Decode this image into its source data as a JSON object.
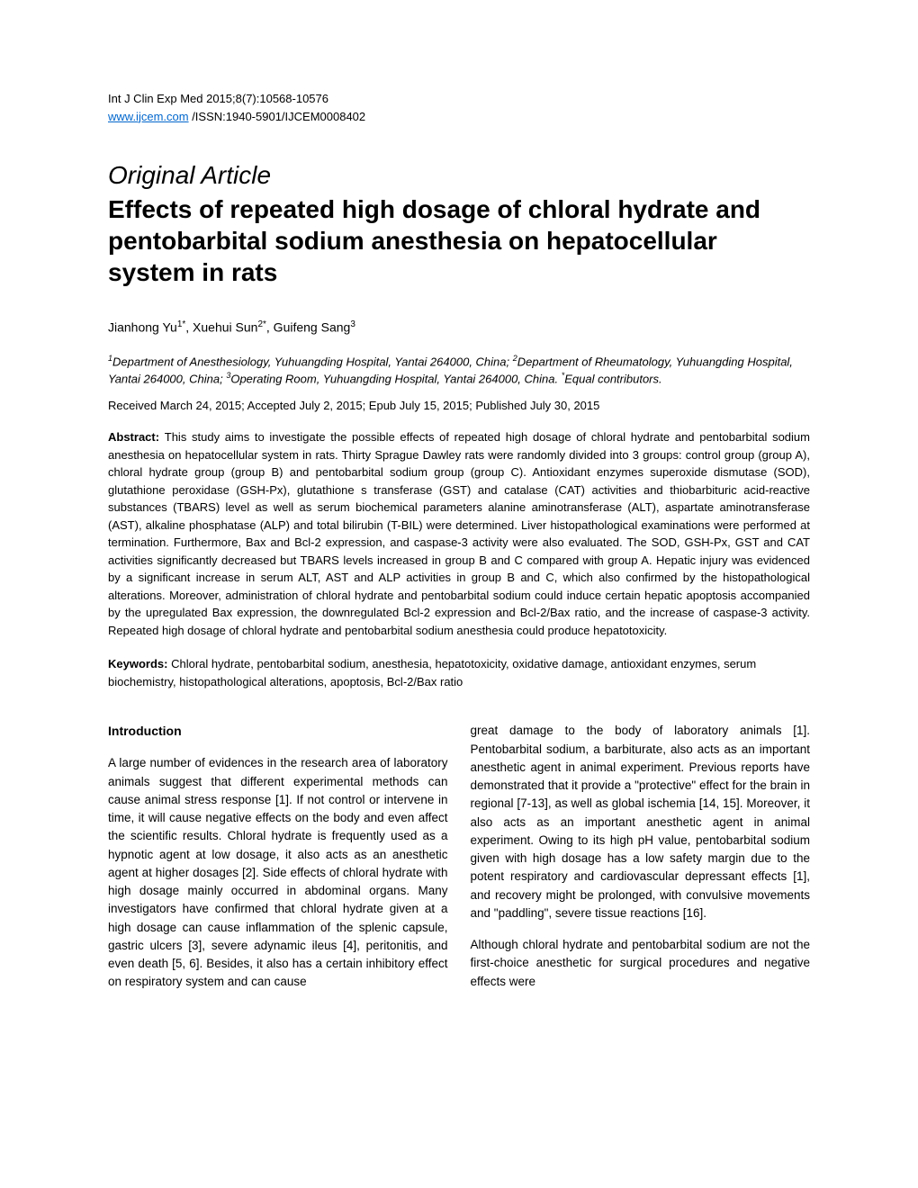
{
  "header": {
    "journal_line": "Int J Clin Exp Med 2015;8(7):10568-10576",
    "link_text": "www.ijcem.com",
    "issn_text": " /ISSN:1940-5901/IJCEM0008402"
  },
  "article_type": "Original Article",
  "title": "Effects of repeated high dosage of chloral hydrate and pentobarbital sodium anesthesia on hepatocellular system in rats",
  "authors_html": "Jianhong Yu<sup>1*</sup>, Xuehui Sun<sup>2*</sup>, Guifeng Sang<sup>3</sup>",
  "affiliations_html": "<sup>1</sup>Department of Anesthesiology, Yuhuangding Hospital, Yantai 264000, China; <sup>2</sup>Department of Rheumatology, Yuhuangding Hospital, Yantai 264000, China; <sup>3</sup>Operating Room, Yuhuangding Hospital, Yantai 264000, China. <sup>*</sup>Equal contributors.",
  "dates": "Received March 24, 2015; Accepted July 2, 2015; Epub July 15, 2015; Published July 30, 2015",
  "abstract_label": "Abstract: ",
  "abstract_text": "This study aims to investigate the possible effects of repeated high dosage of chloral hydrate and pentobarbital sodium anesthesia on hepatocellular system in rats. Thirty Sprague Dawley rats were randomly divided into 3 groups: control group (group A), chloral hydrate group (group B) and pentobarbital sodium group (group C). Antioxidant enzymes superoxide dismutase (SOD), glutathione peroxidase (GSH-Px), glutathione s transferase (GST) and catalase (CAT) activities and thiobarbituric acid-reactive substances (TBARS) level as well as serum biochemical parameters alanine aminotransferase (ALT), aspartate aminotransferase (AST), alkaline phosphatase (ALP) and total bilirubin (T-BIL) were determined. Liver histopathological examinations were performed at termination. Furthermore, Bax and Bcl-2 expression, and caspase-3 activity were also evaluated. The SOD, GSH-Px, GST and CAT activities significantly decreased but TBARS levels increased in group B and C compared with group A. Hepatic injury was evidenced by a significant increase in serum ALT, AST and ALP activities in group B and C, which also confirmed by the histopathological alterations. Moreover, administration of chloral hydrate and pentobarbital sodium could induce certain hepatic apoptosis accompanied by the upregulated Bax expression, the downregulated Bcl-2 expression and Bcl-2/Bax ratio, and the increase of caspase-3 activity. Repeated high dosage of chloral hydrate and pentobarbital sodium anesthesia could produce hepatotoxicity.",
  "keywords_label": "Keywords: ",
  "keywords_text": "Chloral hydrate, pentobarbital sodium, anesthesia, hepatotoxicity, oxidative damage, antioxidant enzymes, serum biochemistry, histopathological alterations, apoptosis, Bcl-2/Bax ratio",
  "intro_heading": "Introduction",
  "col1_para1": "A large number of evidences in the research area of laboratory animals suggest that different experimental methods can cause animal stress response [1]. If not control or intervene in time, it will cause negative effects on the body and even affect the scientific results. Chloral hydrate is frequently used as a hypnotic agent at low dosage, it also acts as an anesthetic agent at higher dosages [2]. Side effects of chloral hydrate with high dosage mainly occurred in abdominal organs. Many investigators have confirmed that chloral hydrate given at a high dosage can cause inflammation of the splenic capsule, gastric ulcers [3], severe adynamic ileus [4], peritonitis, and even death [5, 6]. Besides, it also has a certain inhibitory effect on respiratory system and can cause",
  "col2_para1": "great damage to the body of laboratory animals [1]. Pentobarbital sodium, a barbiturate, also acts as an important anesthetic agent in animal experiment. Previous reports have demonstrated that it provide a \"protective\" effect for the brain in regional [7-13], as well as global ischemia [14, 15]. Moreover, it also acts as an important anesthetic agent in animal experiment. Owing to its high pH value, pentobarbital sodium given with high dosage has a low safety margin due to the potent respiratory and cardiovascular depressant effects [1], and recovery might be prolonged, with convulsive movements and \"paddling\", severe tissue reactions [16].",
  "col2_para2": "Although chloral hydrate and pentobarbital sodium are not the first-choice anesthetic for surgical procedures and negative effects were"
}
